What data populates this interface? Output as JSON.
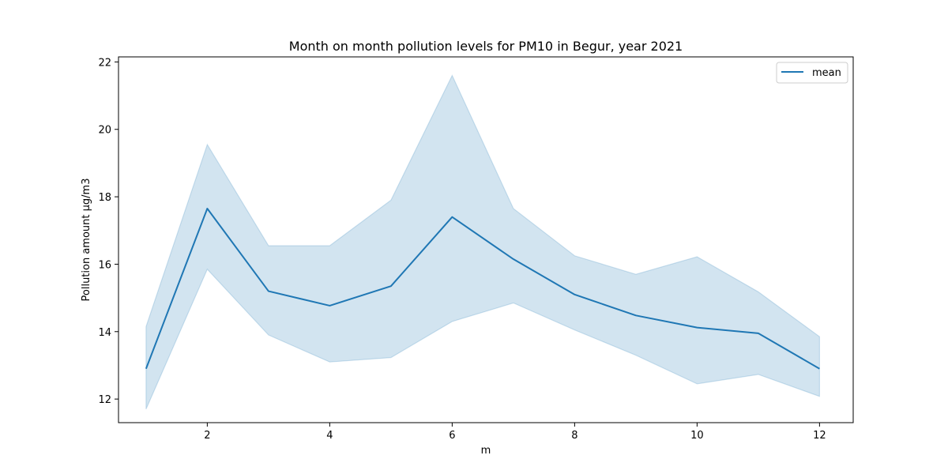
{
  "chart_data": {
    "type": "line",
    "title": "Month on month pollution levels for PM10 in Begur, year 2021",
    "xlabel": "m",
    "ylabel": "Pollution amount μg/m3",
    "xlim": [
      0.55,
      12.55
    ],
    "ylim": [
      11.3,
      22.15
    ],
    "xticks": [
      2,
      4,
      6,
      8,
      10,
      12
    ],
    "yticks": [
      12,
      14,
      16,
      18,
      20,
      22
    ],
    "grid": false,
    "legend": "top-right",
    "colors": {
      "line": "#1f77b4",
      "band": "#1f77b4"
    },
    "series": [
      {
        "name": "mean",
        "x": [
          1,
          2,
          3,
          4,
          5,
          6,
          7,
          8,
          9,
          10,
          11,
          12
        ],
        "values": [
          12.9,
          17.65,
          15.2,
          14.77,
          15.35,
          17.4,
          16.15,
          15.1,
          14.48,
          14.12,
          13.95,
          12.9
        ],
        "upper": [
          14.15,
          19.55,
          16.55,
          16.55,
          17.9,
          21.6,
          17.65,
          16.25,
          15.7,
          16.22,
          15.18,
          13.85
        ],
        "lower": [
          11.7,
          15.85,
          13.9,
          13.1,
          13.23,
          14.3,
          14.85,
          14.05,
          13.3,
          12.45,
          12.73,
          12.08
        ]
      }
    ]
  }
}
